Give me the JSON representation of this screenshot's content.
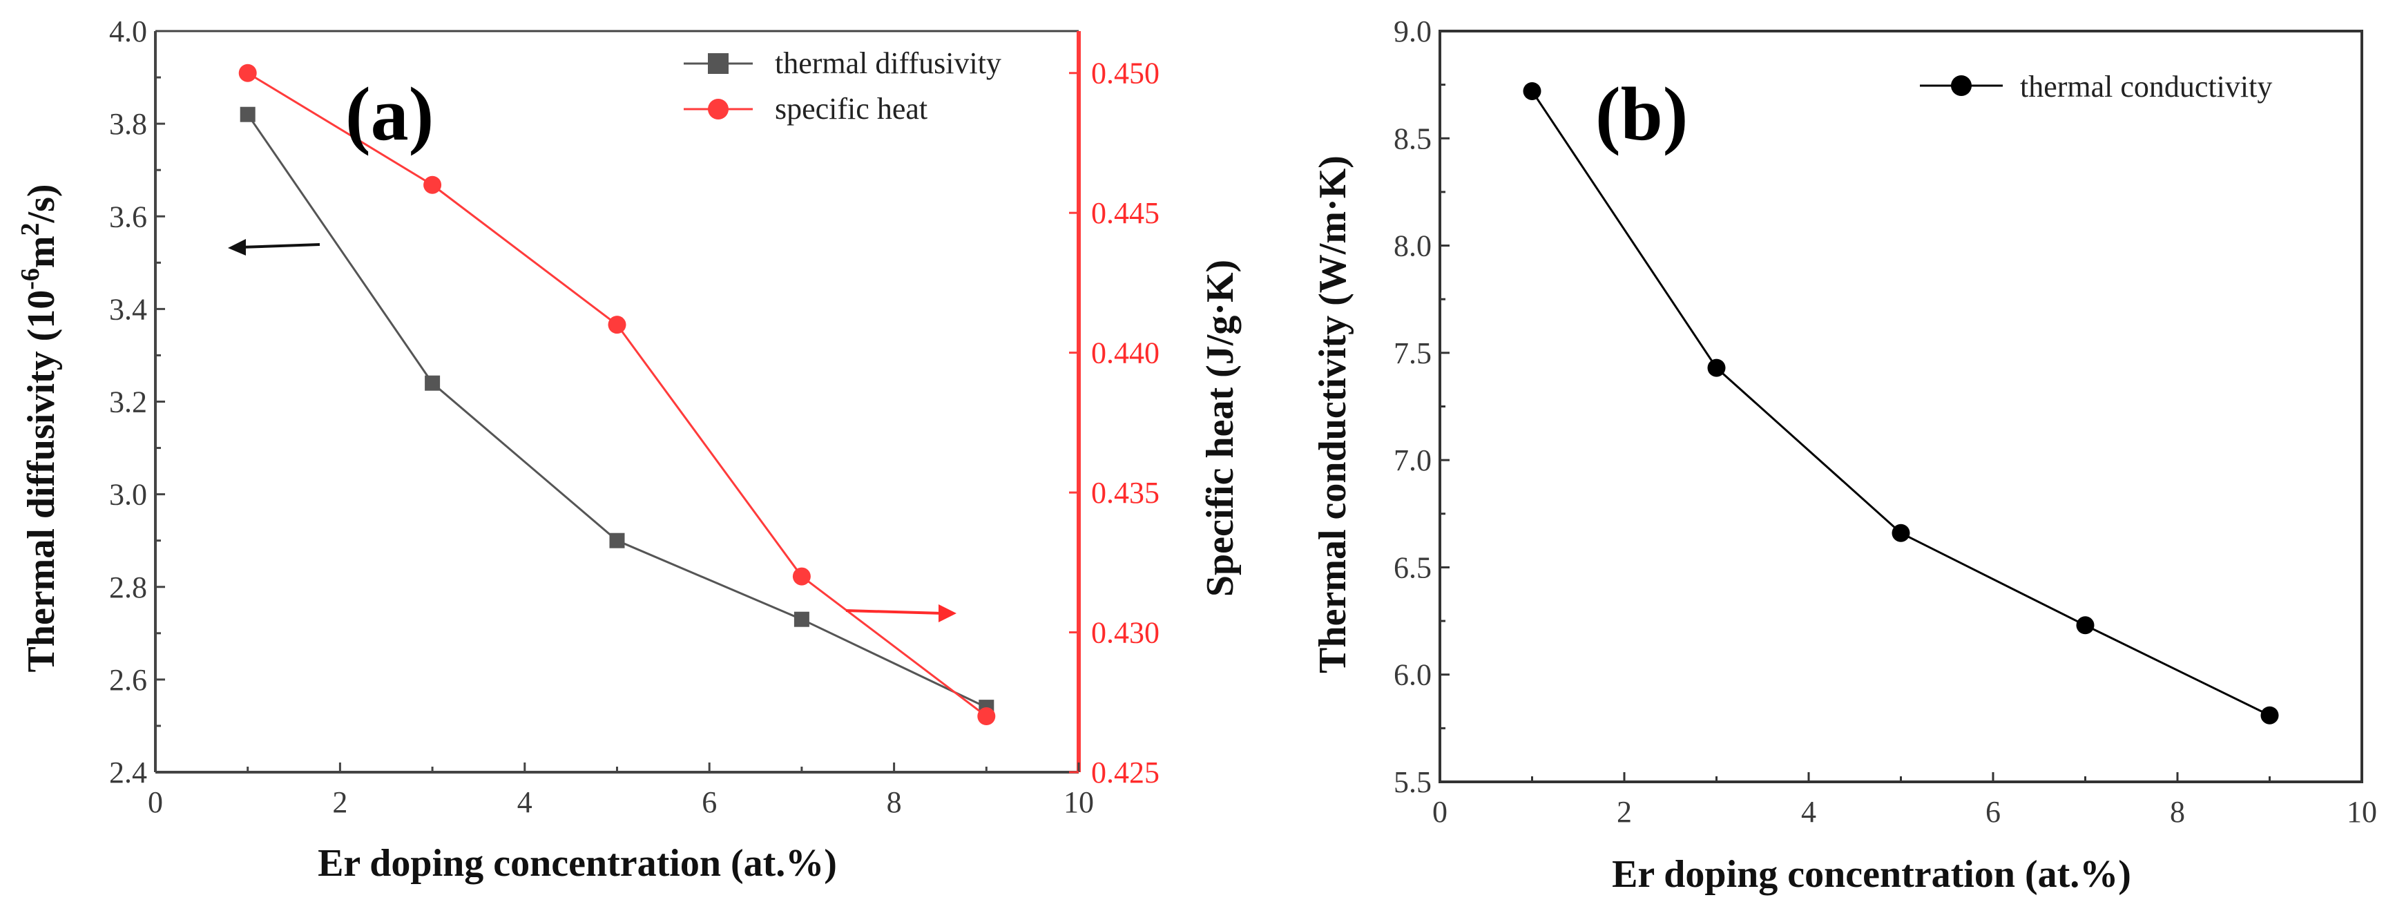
{
  "chart_data": [
    {
      "panel_label": "(a)",
      "type": "line",
      "x": [
        1,
        3,
        5,
        7,
        9
      ],
      "xlim": [
        0,
        10
      ],
      "xticks": [
        "0",
        "2",
        "4",
        "6",
        "8",
        "10"
      ],
      "xlabel": "Er doping concentration (at.%)",
      "ylabel": "Thermal diffusivity (10-6m2/s)",
      "ylabel_parts": {
        "pre": "Thermal diffusivity (10",
        "exp1": "-6",
        "mid": "m",
        "exp2": "2",
        "post": "/s)"
      },
      "ylim": [
        2.4,
        4.0
      ],
      "yticks": [
        "2.4",
        "2.6",
        "2.8",
        "3.0",
        "3.2",
        "3.4",
        "3.6",
        "3.8",
        "4.0"
      ],
      "y2label": "Specific heat (J/g·K)",
      "y2lim": [
        0.425,
        0.4515
      ],
      "y2ticks": [
        "0.425",
        "0.430",
        "0.435",
        "0.440",
        "0.445",
        "0.450"
      ],
      "series": [
        {
          "name": "thermal diffusivity",
          "axis": "left",
          "marker": "square",
          "color": "#555555",
          "values": [
            3.82,
            3.24,
            2.9,
            2.73,
            2.54
          ]
        },
        {
          "name": "specific heat",
          "axis": "right",
          "marker": "circle",
          "color": "#ff3b3b",
          "values": [
            0.45,
            0.446,
            0.441,
            0.432,
            0.427
          ]
        }
      ],
      "legend_position": "top-right",
      "annotations": [
        "left-arrow: thermal diffusivity uses left axis",
        "right-arrow: specific heat uses right axis"
      ]
    },
    {
      "panel_label": "(b)",
      "type": "line",
      "x": [
        1,
        3,
        5,
        7,
        9
      ],
      "xlim": [
        0,
        10
      ],
      "xticks": [
        "0",
        "2",
        "4",
        "6",
        "8",
        "10"
      ],
      "xlabel": "Er doping concentration (at.%)",
      "ylabel": "Thermal conductivity (W/m·K)",
      "ylim": [
        5.5,
        9.0
      ],
      "yticks": [
        "5.5",
        "6.0",
        "6.5",
        "7.0",
        "7.5",
        "8.0",
        "8.5",
        "9.0"
      ],
      "series": [
        {
          "name": "thermal conductivity",
          "marker": "circle",
          "color": "#000000",
          "values": [
            8.72,
            7.43,
            6.66,
            6.23,
            5.81
          ]
        }
      ],
      "legend_position": "top-right"
    }
  ]
}
